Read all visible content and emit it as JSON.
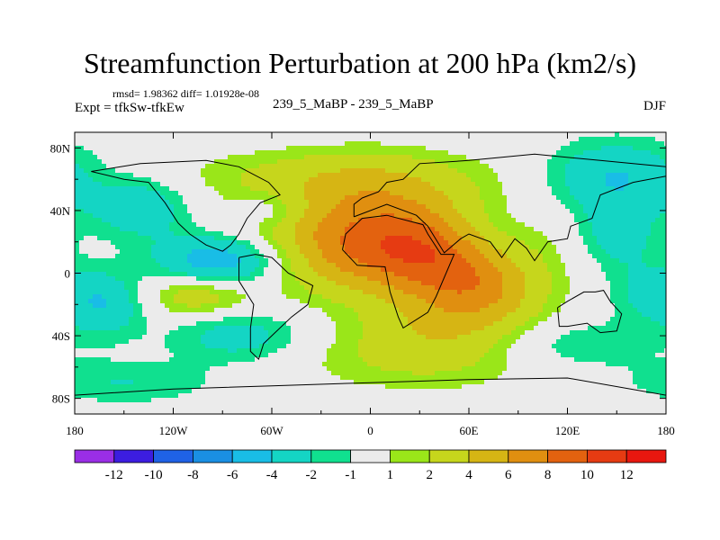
{
  "header": {
    "title": "Streamfunction Perturbation at 200 hPa (km2/s)",
    "stats": "rmsd= 1.98362 diff= 1.01928e-08",
    "expt": "Expt = tfkSw-tfkEw",
    "case": "239_5_MaBP - 239_5_MaBP",
    "season": "DJF"
  },
  "chart_data": {
    "type": "heatmap",
    "title": "Streamfunction Perturbation at 200 hPa (km2/s)",
    "variable": "Streamfunction Perturbation",
    "level": "200 hPa",
    "units": "km2/s",
    "xlim": [
      -180,
      180
    ],
    "ylim": [
      -90,
      90
    ],
    "x_ticks": [
      {
        "value": -180,
        "label": "180"
      },
      {
        "value": -120,
        "label": "120W"
      },
      {
        "value": -60,
        "label": "60W"
      },
      {
        "value": 0,
        "label": "0"
      },
      {
        "value": 60,
        "label": "60E"
      },
      {
        "value": 120,
        "label": "120E"
      },
      {
        "value": 180,
        "label": "180"
      }
    ],
    "y_ticks": [
      {
        "value": 80,
        "label": "80N"
      },
      {
        "value": 40,
        "label": "40N"
      },
      {
        "value": 0,
        "label": "0"
      },
      {
        "value": -40,
        "label": "40S"
      },
      {
        "value": -80,
        "label": "80S"
      }
    ],
    "colorbar": {
      "levels": [
        -12,
        -10,
        -8,
        -6,
        -4,
        -2,
        -1,
        1,
        2,
        4,
        6,
        8,
        10,
        12
      ],
      "labels": [
        "-12",
        "-10",
        "-8",
        "-6",
        "-4",
        "-2",
        "-1",
        "1",
        "2",
        "4",
        "6",
        "8",
        "10",
        "12"
      ],
      "colors": [
        "#9a2ee6",
        "#3c1de0",
        "#1f62e6",
        "#1a8fe3",
        "#19bde6",
        "#14d5c4",
        "#10e08f",
        "#ebebeb",
        "#9ae619",
        "#c6d61c",
        "#d6b514",
        "#e08f10",
        "#e3620f",
        "#e63b12",
        "#e8170f"
      ]
    },
    "features": [
      {
        "lon": 10,
        "lat": 15,
        "amp": 7.5,
        "rx": 55,
        "ry": 20
      },
      {
        "lon": 0,
        "lat": 45,
        "amp": 3.5,
        "rx": 40,
        "ry": 20
      },
      {
        "lon": 45,
        "lat": 5,
        "amp": 3.5,
        "rx": 30,
        "ry": 22
      },
      {
        "lon": 70,
        "lat": -12,
        "amp": 3.0,
        "rx": 25,
        "ry": 14
      },
      {
        "lon": 55,
        "lat": -35,
        "amp": 3.0,
        "rx": 40,
        "ry": 15
      },
      {
        "lon": 30,
        "lat": -55,
        "amp": 2.0,
        "rx": 55,
        "ry": 15
      },
      {
        "lon": -30,
        "lat": 62,
        "amp": 2.0,
        "rx": 70,
        "ry": 12
      },
      {
        "lon": -105,
        "lat": -14,
        "amp": 3.5,
        "rx": 22,
        "ry": 10
      },
      {
        "lon": -90,
        "lat": 8,
        "amp": -6.5,
        "rx": 28,
        "ry": 12
      },
      {
        "lon": -140,
        "lat": 42,
        "amp": -3.5,
        "rx": 22,
        "ry": 14
      },
      {
        "lon": -160,
        "lat": -20,
        "amp": -3.5,
        "rx": 16,
        "ry": 14
      },
      {
        "lon": -80,
        "lat": -40,
        "amp": -3.0,
        "rx": 30,
        "ry": 12
      },
      {
        "lon": -150,
        "lat": -70,
        "amp": -2.0,
        "rx": 40,
        "ry": 10
      },
      {
        "lon": 150,
        "lat": 62,
        "amp": -4.0,
        "rx": 30,
        "ry": 16
      },
      {
        "lon": 150,
        "lat": 25,
        "amp": -3.0,
        "rx": 18,
        "ry": 16
      },
      {
        "lon": 170,
        "lat": -12,
        "amp": -2.5,
        "rx": 18,
        "ry": 14
      },
      {
        "lon": 70,
        "lat": 25,
        "amp": -2.5,
        "rx": 22,
        "ry": 14
      },
      {
        "lon": 115,
        "lat": -45,
        "amp": -2.5,
        "rx": 40,
        "ry": 12
      },
      {
        "lon": -60,
        "lat": 40,
        "amp": -2.0,
        "rx": 15,
        "ry": 8
      }
    ],
    "continents": [
      {
        "name": "South America",
        "points": [
          [
            -80,
            10
          ],
          [
            -70,
            12
          ],
          [
            -60,
            10
          ],
          [
            -50,
            0
          ],
          [
            -35,
            -8
          ],
          [
            -38,
            -20
          ],
          [
            -48,
            -28
          ],
          [
            -58,
            -38
          ],
          [
            -65,
            -45
          ],
          [
            -68,
            -55
          ],
          [
            -73,
            -50
          ],
          [
            -73,
            -35
          ],
          [
            -71,
            -20
          ],
          [
            -80,
            -5
          ],
          [
            -80,
            10
          ]
        ]
      },
      {
        "name": "North America",
        "points": [
          [
            -170,
            65
          ],
          [
            -140,
            70
          ],
          [
            -100,
            72
          ],
          [
            -80,
            68
          ],
          [
            -62,
            58
          ],
          [
            -55,
            50
          ],
          [
            -67,
            45
          ],
          [
            -75,
            35
          ],
          [
            -80,
            25
          ],
          [
            -85,
            18
          ],
          [
            -90,
            14
          ],
          [
            -100,
            18
          ],
          [
            -110,
            25
          ],
          [
            -117,
            32
          ],
          [
            -125,
            45
          ],
          [
            -135,
            58
          ],
          [
            -150,
            60
          ],
          [
            -170,
            65
          ]
        ]
      },
      {
        "name": "Africa",
        "points": [
          [
            -17,
            15
          ],
          [
            -15,
            25
          ],
          [
            -5,
            35
          ],
          [
            10,
            37
          ],
          [
            32,
            31
          ],
          [
            35,
            25
          ],
          [
            43,
            12
          ],
          [
            51,
            12
          ],
          [
            40,
            -15
          ],
          [
            35,
            -25
          ],
          [
            20,
            -35
          ],
          [
            17,
            -28
          ],
          [
            12,
            -12
          ],
          [
            9,
            4
          ],
          [
            -8,
            5
          ],
          [
            -17,
            15
          ]
        ]
      },
      {
        "name": "Eurasia",
        "points": [
          [
            -10,
            36
          ],
          [
            -10,
            44
          ],
          [
            -5,
            48
          ],
          [
            5,
            52
          ],
          [
            10,
            58
          ],
          [
            20,
            60
          ],
          [
            30,
            70
          ],
          [
            60,
            72
          ],
          [
            100,
            76
          ],
          [
            140,
            72
          ],
          [
            180,
            68
          ],
          [
            180,
            62
          ],
          [
            160,
            58
          ],
          [
            140,
            50
          ],
          [
            135,
            35
          ],
          [
            122,
            30
          ],
          [
            120,
            22
          ],
          [
            108,
            20
          ],
          [
            100,
            8
          ],
          [
            95,
            16
          ],
          [
            88,
            22
          ],
          [
            80,
            10
          ],
          [
            73,
            20
          ],
          [
            60,
            25
          ],
          [
            55,
            22
          ],
          [
            45,
            13
          ],
          [
            35,
            30
          ],
          [
            28,
            37
          ],
          [
            10,
            44
          ],
          [
            -10,
            36
          ]
        ]
      },
      {
        "name": "Australia",
        "points": [
          [
            114,
            -22
          ],
          [
            120,
            -18
          ],
          [
            130,
            -12
          ],
          [
            137,
            -12
          ],
          [
            142,
            -11
          ],
          [
            146,
            -18
          ],
          [
            153,
            -26
          ],
          [
            150,
            -37
          ],
          [
            140,
            -38
          ],
          [
            132,
            -32
          ],
          [
            120,
            -34
          ],
          [
            115,
            -34
          ],
          [
            114,
            -22
          ]
        ]
      },
      {
        "name": "Antarctica",
        "points": [
          [
            -180,
            -78
          ],
          [
            -120,
            -74
          ],
          [
            -60,
            -72
          ],
          [
            0,
            -70
          ],
          [
            60,
            -68
          ],
          [
            120,
            -67
          ],
          [
            180,
            -78
          ],
          [
            180,
            -90
          ],
          [
            -180,
            -90
          ],
          [
            -180,
            -78
          ]
        ]
      }
    ]
  }
}
